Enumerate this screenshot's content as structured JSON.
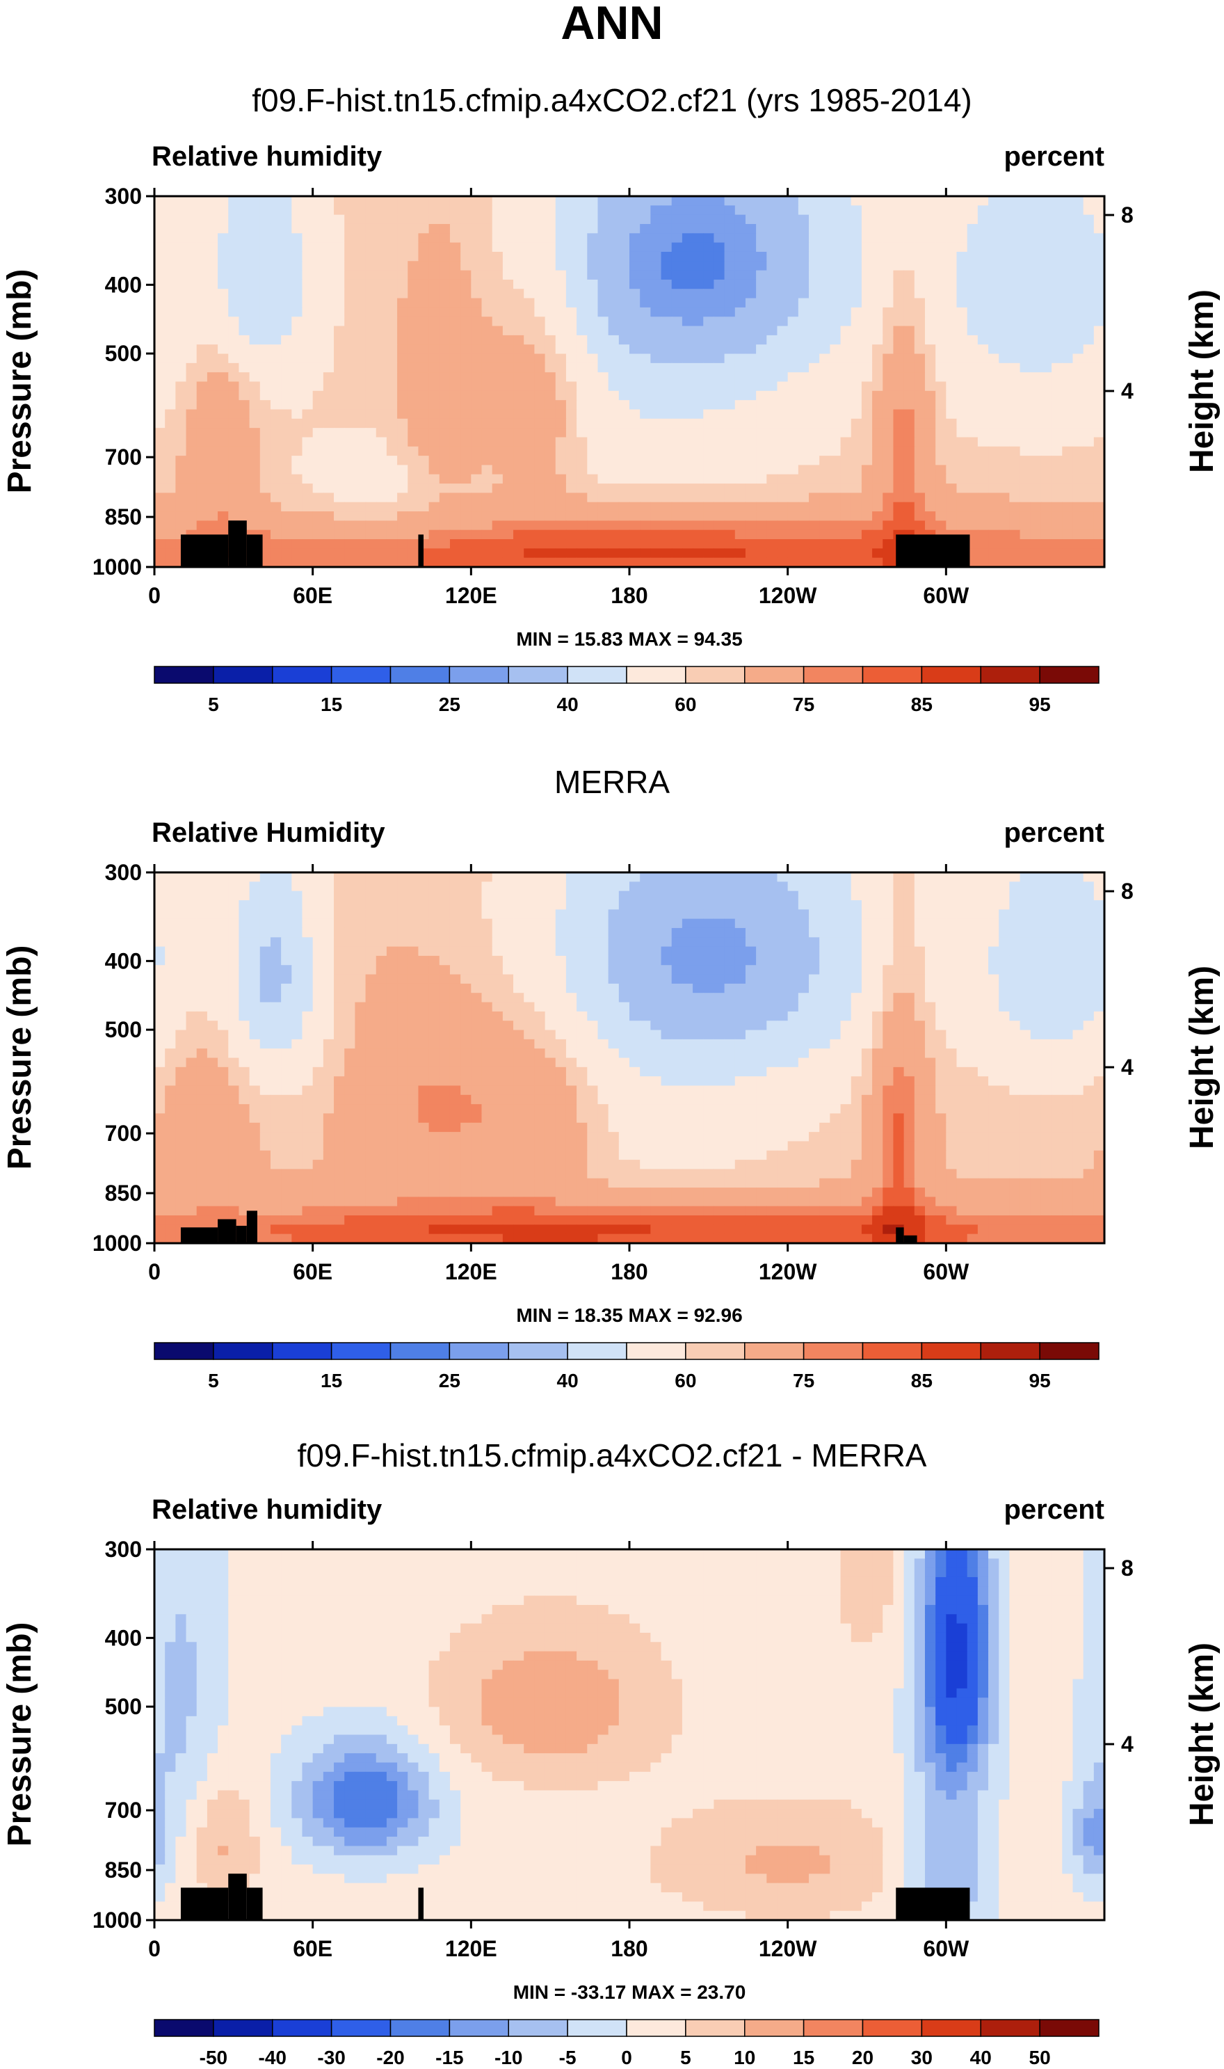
{
  "figure_title": "ANN",
  "colors": {
    "rh_palette": [
      "#0a0a6e",
      "#0a1fa8",
      "#1a3fd6",
      "#2f5fe8",
      "#4f7fe6",
      "#7b9fec",
      "#a6c0f0",
      "#d0e2f7",
      "#fde9dc",
      "#f9cdb4",
      "#f5ab89",
      "#f28560",
      "#ec5e36",
      "#d93c18",
      "#ad1f0c",
      "#7a0a06"
    ],
    "land": "#000000"
  },
  "chart_data": [
    {
      "type": "heatmap",
      "title": "f09.F-hist.tn15.cfmip.a4xCO2.cf21 (yrs 1985-2014)",
      "left_string": "Relative humidity",
      "right_string": "percent",
      "ylabel": "Pressure (mb)",
      "ylabel_right": "Height (km)",
      "x_ticks": [
        "0",
        "60E",
        "120E",
        "180",
        "120W",
        "60W"
      ],
      "x_tick_values": [
        0,
        60,
        120,
        180,
        240,
        300
      ],
      "xlim": [
        0,
        360
      ],
      "y_ticks": [
        "300",
        "400",
        "500",
        "700",
        "850",
        "1000"
      ],
      "y_tick_values": [
        300,
        400,
        500,
        700,
        850,
        1000
      ],
      "ylim": [
        300,
        1000
      ],
      "height_ticks": [
        "8",
        "4"
      ],
      "height_tick_values": [
        8,
        4
      ],
      "stats": "MIN = 15.83  MAX = 94.35",
      "min": 15.83,
      "max": 94.35,
      "levels": [
        5,
        10,
        15,
        20,
        25,
        30,
        40,
        50,
        60,
        65,
        75,
        80,
        85,
        90,
        95
      ],
      "colorbar_labels": [
        "5",
        "15",
        "25",
        "40",
        "60",
        "75",
        "85",
        "95"
      ],
      "field": {
        "base": 62,
        "features": [
          {
            "lon": 205,
            "p": 370,
            "slon": 42,
            "sp": 120,
            "amp": -38
          },
          {
            "lon": 40,
            "p": 390,
            "slon": 14,
            "sp": 100,
            "amp": -22
          },
          {
            "lon": 335,
            "p": 400,
            "slon": 28,
            "sp": 140,
            "amp": -18
          },
          {
            "lon": 25,
            "p": 650,
            "slon": 10,
            "sp": 180,
            "amp": 12
          },
          {
            "lon": 110,
            "p": 560,
            "slon": 12,
            "sp": 170,
            "amp": 14
          },
          {
            "lon": 145,
            "p": 560,
            "slon": 14,
            "sp": 170,
            "amp": 14
          },
          {
            "lon": 284,
            "p": 650,
            "slon": 8,
            "sp": 220,
            "amp": 17
          },
          {
            "lon": 180,
            "p": 960,
            "slon": 170,
            "sp": 90,
            "amp": 24
          },
          {
            "lon": 90,
            "p": 820,
            "slon": 30,
            "sp": 120,
            "amp": -8
          },
          {
            "lon": 190,
            "p": 650,
            "slon": 40,
            "sp": 120,
            "amp": -8
          }
        ],
        "min_value": 15.83,
        "max_value": 94.35
      },
      "land": [
        {
          "lon0": 10,
          "lon1": 28,
          "p0": 900,
          "p1": 1000
        },
        {
          "lon0": 28,
          "lon1": 35,
          "p0": 860,
          "p1": 1000
        },
        {
          "lon0": 35,
          "lon1": 41,
          "p0": 900,
          "p1": 1000
        },
        {
          "lon0": 100,
          "lon1": 102,
          "p0": 900,
          "p1": 1000
        },
        {
          "lon0": 281,
          "lon1": 309,
          "p0": 900,
          "p1": 1000
        }
      ]
    },
    {
      "type": "heatmap",
      "title": "MERRA",
      "left_string": "Relative Humidity",
      "right_string": "percent",
      "ylabel": "Pressure (mb)",
      "ylabel_right": "Height (km)",
      "x_ticks": [
        "0",
        "60E",
        "120E",
        "180",
        "120W",
        "60W"
      ],
      "x_tick_values": [
        0,
        60,
        120,
        180,
        240,
        300
      ],
      "xlim": [
        0,
        360
      ],
      "y_ticks": [
        "300",
        "400",
        "500",
        "700",
        "850",
        "1000"
      ],
      "y_tick_values": [
        300,
        400,
        500,
        700,
        850,
        1000
      ],
      "ylim": [
        300,
        1000
      ],
      "height_ticks": [
        "8",
        "4"
      ],
      "height_tick_values": [
        8,
        4
      ],
      "stats": "MIN = 18.35  MAX = 92.96",
      "min": 18.35,
      "max": 92.96,
      "levels": [
        5,
        10,
        15,
        20,
        25,
        30,
        40,
        50,
        60,
        65,
        75,
        80,
        85,
        90,
        95
      ],
      "colorbar_labels": [
        "5",
        "15",
        "25",
        "40",
        "60",
        "75",
        "85",
        "95"
      ],
      "field": {
        "base": 64,
        "features": [
          {
            "lon": 210,
            "p": 390,
            "slon": 45,
            "sp": 130,
            "amp": -36
          },
          {
            "lon": 45,
            "p": 420,
            "slon": 13,
            "sp": 110,
            "amp": -26
          },
          {
            "lon": 342,
            "p": 400,
            "slon": 22,
            "sp": 120,
            "amp": -22
          },
          {
            "lon": 20,
            "p": 650,
            "slon": 12,
            "sp": 150,
            "amp": 8
          },
          {
            "lon": 105,
            "p": 640,
            "slon": 20,
            "sp": 150,
            "amp": 12
          },
          {
            "lon": 145,
            "p": 640,
            "slon": 18,
            "sp": 150,
            "amp": 12
          },
          {
            "lon": 282,
            "p": 680,
            "slon": 8,
            "sp": 230,
            "amp": 18
          },
          {
            "lon": 180,
            "p": 965,
            "slon": 170,
            "sp": 70,
            "amp": 22
          },
          {
            "lon": 190,
            "p": 700,
            "slon": 45,
            "sp": 130,
            "amp": -6
          }
        ],
        "min_value": 18.35,
        "max_value": 92.96
      },
      "land": [
        {
          "lon0": 10,
          "lon1": 24,
          "p0": 950,
          "p1": 1000
        },
        {
          "lon0": 24,
          "lon1": 31,
          "p0": 925,
          "p1": 1000
        },
        {
          "lon0": 31,
          "lon1": 35,
          "p0": 945,
          "p1": 1000
        },
        {
          "lon0": 35,
          "lon1": 39,
          "p0": 900,
          "p1": 1000
        },
        {
          "lon0": 281,
          "lon1": 284,
          "p0": 950,
          "p1": 1000
        },
        {
          "lon0": 284,
          "lon1": 289,
          "p0": 975,
          "p1": 1000
        }
      ]
    },
    {
      "type": "heatmap",
      "title": "f09.F-hist.tn15.cfmip.a4xCO2.cf21 - MERRA",
      "left_string": "Relative humidity",
      "right_string": "percent",
      "ylabel": "Pressure (mb)",
      "ylabel_right": "Height (km)",
      "x_ticks": [
        "0",
        "60E",
        "120E",
        "180",
        "120W",
        "60W"
      ],
      "x_tick_values": [
        0,
        60,
        120,
        180,
        240,
        300
      ],
      "xlim": [
        0,
        360
      ],
      "y_ticks": [
        "300",
        "400",
        "500",
        "700",
        "850",
        "1000"
      ],
      "y_tick_values": [
        300,
        400,
        500,
        700,
        850,
        1000
      ],
      "ylim": [
        300,
        1000
      ],
      "height_ticks": [
        "8",
        "4"
      ],
      "height_tick_values": [
        8,
        4
      ],
      "stats": "MIN = -33.17  MAX = 23.70",
      "min": -33.17,
      "max": 23.7,
      "levels": [
        -50,
        -40,
        -30,
        -20,
        -15,
        -10,
        -5,
        0,
        5,
        10,
        15,
        20,
        30,
        40,
        50
      ],
      "colorbar_labels": [
        "-50",
        "-40",
        "-30",
        "-20",
        "-15",
        "-10",
        "-5",
        "0",
        "5",
        "10",
        "15",
        "20",
        "30",
        "40",
        "50"
      ],
      "field": {
        "base": 2,
        "features": [
          {
            "lon": 304,
            "p": 420,
            "slon": 9,
            "sp": 130,
            "amp": -34
          },
          {
            "lon": 300,
            "p": 850,
            "slon": 12,
            "sp": 200,
            "amp": -12
          },
          {
            "lon": 80,
            "p": 680,
            "slon": 18,
            "sp": 90,
            "amp": -22
          },
          {
            "lon": 10,
            "p": 500,
            "slon": 12,
            "sp": 250,
            "amp": -8
          },
          {
            "lon": 356,
            "p": 760,
            "slon": 6,
            "sp": 90,
            "amp": -12
          },
          {
            "lon": 150,
            "p": 500,
            "slon": 30,
            "sp": 90,
            "amp": 12
          },
          {
            "lon": 240,
            "p": 830,
            "slon": 35,
            "sp": 110,
            "amp": 9
          },
          {
            "lon": 25,
            "p": 780,
            "slon": 10,
            "sp": 120,
            "amp": 10
          },
          {
            "lon": 270,
            "p": 310,
            "slon": 8,
            "sp": 70,
            "amp": 8
          }
        ],
        "min_value": -33.17,
        "max_value": 23.7
      },
      "land": [
        {
          "lon0": 10,
          "lon1": 28,
          "p0": 900,
          "p1": 1000
        },
        {
          "lon0": 28,
          "lon1": 35,
          "p0": 860,
          "p1": 1000
        },
        {
          "lon0": 35,
          "lon1": 41,
          "p0": 900,
          "p1": 1000
        },
        {
          "lon0": 100,
          "lon1": 102,
          "p0": 900,
          "p1": 1000
        },
        {
          "lon0": 281,
          "lon1": 309,
          "p0": 900,
          "p1": 1000
        }
      ]
    }
  ]
}
